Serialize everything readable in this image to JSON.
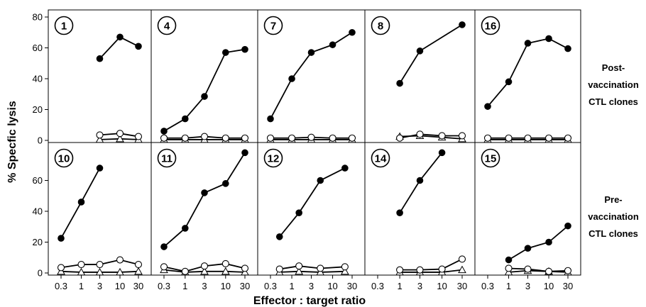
{
  "chart_data": {
    "type": "line",
    "layout": "small-multiples",
    "rows": 2,
    "columns": 5,
    "xlabel": "Effector : target ratio",
    "ylabel": "% Specfic lysis",
    "xscale": "log",
    "xticks": [
      "0.3",
      "1",
      "3",
      "10",
      "30"
    ],
    "yticks": [
      0,
      20,
      40,
      60,
      80
    ],
    "ylim": [
      0,
      80
    ],
    "grid": false,
    "row_labels": [
      [
        "Post-",
        "vaccination",
        "CTL clones"
      ],
      [
        "Pre-",
        "vaccination",
        "CTL clones"
      ]
    ],
    "markers": {
      "filled_circle": "#000000",
      "open_circle": "#ffffff",
      "open_triangle": "#ffffff"
    },
    "panels": [
      {
        "label": "1",
        "row": 0,
        "col": 0,
        "series": [
          {
            "marker": "filled_circle",
            "points": [
              [
                3,
                53
              ],
              [
                10,
                67
              ],
              [
                30,
                61
              ]
            ]
          },
          {
            "marker": "open_circle",
            "points": [
              [
                3,
                3.5
              ],
              [
                10,
                4.5
              ],
              [
                30,
                2.5
              ]
            ]
          },
          {
            "marker": "open_triangle",
            "points": [
              [
                3,
                0.5
              ],
              [
                10,
                1
              ],
              [
                30,
                0.5
              ]
            ]
          }
        ]
      },
      {
        "label": "4",
        "row": 0,
        "col": 1,
        "series": [
          {
            "marker": "filled_circle",
            "points": [
              [
                0.3,
                6
              ],
              [
                1,
                14
              ],
              [
                3,
                28.5
              ],
              [
                10,
                57
              ],
              [
                30,
                59
              ]
            ]
          },
          {
            "marker": "open_circle",
            "points": [
              [
                0.3,
                1.5
              ],
              [
                1,
                1.5
              ],
              [
                3,
                2.5
              ],
              [
                10,
                1.5
              ],
              [
                30,
                1.5
              ]
            ]
          },
          {
            "marker": "open_triangle",
            "points": [
              [
                0.3,
                0.5
              ],
              [
                1,
                0.5
              ],
              [
                3,
                0.5
              ],
              [
                10,
                0.5
              ],
              [
                30,
                0.5
              ]
            ]
          }
        ]
      },
      {
        "label": "7",
        "row": 0,
        "col": 2,
        "series": [
          {
            "marker": "filled_circle",
            "points": [
              [
                0.3,
                14
              ],
              [
                1,
                40
              ],
              [
                3,
                57
              ],
              [
                10,
                62
              ],
              [
                30,
                70
              ]
            ]
          },
          {
            "marker": "open_circle",
            "points": [
              [
                0.3,
                1.5
              ],
              [
                1,
                1.5
              ],
              [
                3,
                2
              ],
              [
                10,
                1.5
              ],
              [
                30,
                1.5
              ]
            ]
          },
          {
            "marker": "open_triangle",
            "points": [
              [
                0.3,
                0.5
              ],
              [
                1,
                0.5
              ],
              [
                3,
                0.5
              ],
              [
                10,
                0.5
              ],
              [
                30,
                0.5
              ]
            ]
          }
        ]
      },
      {
        "label": "8",
        "row": 0,
        "col": 3,
        "series": [
          {
            "marker": "filled_circle",
            "points": [
              [
                1,
                37
              ],
              [
                3,
                58
              ],
              [
                30,
                75
              ]
            ]
          },
          {
            "marker": "open_circle",
            "points": [
              [
                1,
                1.5
              ],
              [
                3,
                4
              ],
              [
                10,
                3
              ],
              [
                30,
                3
              ]
            ]
          },
          {
            "marker": "open_triangle",
            "points": [
              [
                1,
                2.5
              ],
              [
                3,
                3
              ],
              [
                10,
                2
              ],
              [
                30,
                1
              ]
            ]
          }
        ]
      },
      {
        "label": "16",
        "row": 0,
        "col": 4,
        "series": [
          {
            "marker": "filled_circle",
            "points": [
              [
                0.3,
                22
              ],
              [
                1,
                38
              ],
              [
                3,
                63
              ],
              [
                10,
                66
              ],
              [
                30,
                59.5
              ]
            ]
          },
          {
            "marker": "open_circle",
            "points": [
              [
                0.3,
                1.5
              ],
              [
                1,
                1.5
              ],
              [
                3,
                1.5
              ],
              [
                10,
                1.5
              ],
              [
                30,
                1.5
              ]
            ]
          },
          {
            "marker": "open_triangle",
            "points": [
              [
                0.3,
                0.5
              ],
              [
                1,
                0.5
              ],
              [
                3,
                0.5
              ],
              [
                10,
                0.5
              ],
              [
                30,
                0.5
              ]
            ]
          }
        ]
      },
      {
        "label": "10",
        "row": 1,
        "col": 0,
        "series": [
          {
            "marker": "filled_circle",
            "points": [
              [
                0.3,
                22.5
              ],
              [
                1,
                46
              ],
              [
                3,
                68
              ]
            ]
          },
          {
            "marker": "open_circle",
            "points": [
              [
                0.3,
                3.5
              ],
              [
                1,
                5.5
              ],
              [
                3,
                5.5
              ],
              [
                10,
                8.5
              ],
              [
                30,
                5.5
              ]
            ]
          },
          {
            "marker": "open_triangle",
            "points": [
              [
                0.3,
                1
              ],
              [
                1,
                0.5
              ],
              [
                3,
                0.5
              ],
              [
                10,
                0.5
              ],
              [
                30,
                1
              ]
            ]
          }
        ]
      },
      {
        "label": "11",
        "row": 1,
        "col": 1,
        "series": [
          {
            "marker": "filled_circle",
            "points": [
              [
                0.3,
                17
              ],
              [
                1,
                29
              ],
              [
                3,
                52
              ],
              [
                10,
                58
              ],
              [
                30,
                78
              ]
            ]
          },
          {
            "marker": "open_circle",
            "points": [
              [
                0.3,
                4
              ],
              [
                1,
                1
              ],
              [
                3,
                4.5
              ],
              [
                10,
                6
              ],
              [
                30,
                3
              ]
            ]
          },
          {
            "marker": "open_triangle",
            "points": [
              [
                0.3,
                2
              ],
              [
                1,
                0.5
              ],
              [
                3,
                1
              ],
              [
                10,
                1
              ],
              [
                30,
                0.5
              ]
            ]
          }
        ]
      },
      {
        "label": "12",
        "row": 1,
        "col": 2,
        "series": [
          {
            "marker": "filled_circle",
            "points": [
              [
                0.5,
                23.5
              ],
              [
                1.5,
                39
              ],
              [
                5,
                60
              ],
              [
                20,
                68
              ]
            ]
          },
          {
            "marker": "open_circle",
            "points": [
              [
                0.5,
                2.5
              ],
              [
                1.5,
                4.5
              ],
              [
                5,
                3
              ],
              [
                20,
                4
              ]
            ]
          },
          {
            "marker": "open_triangle",
            "points": [
              [
                0.5,
                0.5
              ],
              [
                1.5,
                1
              ],
              [
                5,
                0.5
              ],
              [
                20,
                1
              ]
            ]
          }
        ]
      },
      {
        "label": "14",
        "row": 1,
        "col": 3,
        "series": [
          {
            "marker": "filled_circle",
            "points": [
              [
                1,
                39
              ],
              [
                3,
                60
              ],
              [
                10,
                78
              ]
            ]
          },
          {
            "marker": "open_circle",
            "points": [
              [
                1,
                2
              ],
              [
                3,
                2
              ],
              [
                10,
                2.5
              ],
              [
                30,
                9
              ]
            ]
          },
          {
            "marker": "open_triangle",
            "points": [
              [
                1,
                0.5
              ],
              [
                3,
                0.5
              ],
              [
                10,
                0.5
              ],
              [
                30,
                2
              ]
            ]
          }
        ]
      },
      {
        "label": "15",
        "row": 1,
        "col": 4,
        "series": [
          {
            "marker": "filled_circle",
            "points": [
              [
                1,
                8.5
              ],
              [
                3,
                16
              ],
              [
                10,
                20
              ],
              [
                30,
                30.5
              ]
            ]
          },
          {
            "marker": "open_circle",
            "points": [
              [
                1,
                3
              ],
              [
                3,
                2.5
              ],
              [
                10,
                1
              ],
              [
                30,
                1.5
              ]
            ]
          },
          {
            "marker": "open_triangle",
            "points": [
              [
                1,
                0.5
              ],
              [
                3,
                1.5
              ],
              [
                10,
                1
              ],
              [
                30,
                0.5
              ]
            ]
          }
        ]
      }
    ]
  }
}
